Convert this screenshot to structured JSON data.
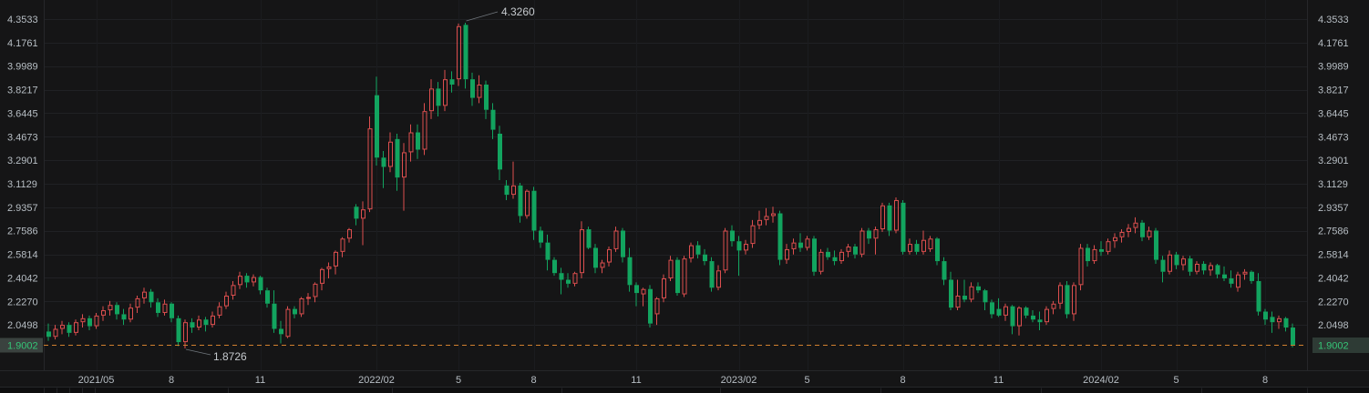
{
  "chart_data": {
    "type": "candlestick",
    "title": "",
    "interval_hint": "weekly K-line, red=up hollow, green=down filled",
    "colors": {
      "background": "#151516",
      "bottom_strip_bg": "#0e0e0f",
      "grid_h": "#202124",
      "grid_v": "#1b1c1f",
      "border": "#26272a",
      "axis_text": "#b7bec4",
      "up": "#dd4f4f",
      "down": "#12a45f",
      "current_price_line": "#d07f2e",
      "current_price_text": "#35c577",
      "left_tag_bg": "#3a423f",
      "right_tag_bg": "#2e3b35",
      "annotation_text": "#c5c9cd",
      "annotation_line": "#70767c"
    },
    "y_axis": {
      "ticks": [
        "4.3533",
        "4.1761",
        "3.9989",
        "3.8217",
        "3.6445",
        "3.4673",
        "3.2901",
        "3.1129",
        "2.9357",
        "2.7586",
        "2.5814",
        "2.4042",
        "2.2270",
        "2.0498"
      ],
      "range_hint": [
        1.755,
        4.5
      ]
    },
    "x_axis": {
      "labels": [
        {
          "text": "2021/05",
          "i": 7
        },
        {
          "text": "8",
          "i": 18
        },
        {
          "text": "11",
          "i": 31
        },
        {
          "text": "2022/02",
          "i": 48
        },
        {
          "text": "5",
          "i": 60
        },
        {
          "text": "8",
          "i": 71
        },
        {
          "text": "11",
          "i": 86
        },
        {
          "text": "2023/02",
          "i": 101
        },
        {
          "text": "5",
          "i": 111
        },
        {
          "text": "8",
          "i": 125
        },
        {
          "text": "11",
          "i": 139
        },
        {
          "text": "2024/02",
          "i": 154
        },
        {
          "text": "5",
          "i": 165
        },
        {
          "text": "8",
          "i": 178
        }
      ]
    },
    "current_price": {
      "label": "1.9002",
      "value": 1.9002
    },
    "annotations": {
      "high": {
        "label": "4.3260",
        "value": 4.326,
        "candle_index": 61
      },
      "low": {
        "label": "1.8726",
        "value": 1.8726,
        "candle_index": 20
      }
    },
    "candles": [
      [
        2.0,
        2.06,
        1.93,
        1.96
      ],
      [
        1.96,
        2.05,
        1.94,
        2.02
      ],
      [
        2.02,
        2.08,
        1.98,
        2.05
      ],
      [
        2.05,
        2.07,
        1.96,
        1.99
      ],
      [
        1.99,
        2.09,
        1.97,
        2.07
      ],
      [
        2.07,
        2.13,
        2.03,
        2.1
      ],
      [
        2.1,
        2.12,
        2.01,
        2.04
      ],
      [
        2.04,
        2.14,
        2.02,
        2.12
      ],
      [
        2.12,
        2.19,
        2.08,
        2.16
      ],
      [
        2.16,
        2.23,
        2.12,
        2.2
      ],
      [
        2.2,
        2.22,
        2.09,
        2.13
      ],
      [
        2.13,
        2.17,
        2.05,
        2.09
      ],
      [
        2.09,
        2.21,
        2.07,
        2.18
      ],
      [
        2.18,
        2.27,
        2.14,
        2.25
      ],
      [
        2.25,
        2.33,
        2.21,
        2.3
      ],
      [
        2.3,
        2.32,
        2.18,
        2.22
      ],
      [
        2.22,
        2.25,
        2.11,
        2.14
      ],
      [
        2.14,
        2.24,
        2.12,
        2.21
      ],
      [
        2.21,
        2.22,
        2.07,
        2.1
      ],
      [
        2.1,
        2.12,
        1.89,
        1.92
      ],
      [
        1.92,
        2.09,
        1.8726,
        2.07
      ],
      [
        2.07,
        2.1,
        1.99,
        2.03
      ],
      [
        2.03,
        2.12,
        2.01,
        2.09
      ],
      [
        2.09,
        2.11,
        2.0,
        2.05
      ],
      [
        2.05,
        2.15,
        2.03,
        2.12
      ],
      [
        2.12,
        2.22,
        2.1,
        2.19
      ],
      [
        2.19,
        2.3,
        2.17,
        2.27
      ],
      [
        2.27,
        2.38,
        2.24,
        2.35
      ],
      [
        2.35,
        2.45,
        2.32,
        2.42
      ],
      [
        2.42,
        2.44,
        2.33,
        2.37
      ],
      [
        2.37,
        2.43,
        2.34,
        2.41
      ],
      [
        2.41,
        2.42,
        2.28,
        2.31
      ],
      [
        2.31,
        2.33,
        2.18,
        2.21
      ],
      [
        2.21,
        2.31,
        1.99,
        2.02
      ],
      [
        2.02,
        2.08,
        1.91,
        1.98
      ],
      [
        1.96,
        2.19,
        1.95,
        2.17
      ],
      [
        2.17,
        2.19,
        2.1,
        2.13
      ],
      [
        2.13,
        2.26,
        2.11,
        2.25
      ],
      [
        2.25,
        2.29,
        2.2,
        2.26
      ],
      [
        2.26,
        2.37,
        2.22,
        2.36
      ],
      [
        2.36,
        2.48,
        2.31,
        2.47
      ],
      [
        2.47,
        2.52,
        2.4,
        2.49
      ],
      [
        2.49,
        2.61,
        2.43,
        2.6
      ],
      [
        2.6,
        2.71,
        2.56,
        2.7
      ],
      [
        2.7,
        2.78,
        2.67,
        2.77
      ],
      [
        2.94,
        2.96,
        2.8,
        2.85
      ],
      [
        2.85,
        2.98,
        2.65,
        2.92
      ],
      [
        2.92,
        3.62,
        2.9,
        3.53
      ],
      [
        3.78,
        3.92,
        3.25,
        3.31
      ],
      [
        3.31,
        3.36,
        3.08,
        3.24
      ],
      [
        3.24,
        3.5,
        3.2,
        3.43
      ],
      [
        3.45,
        3.49,
        3.06,
        3.16
      ],
      [
        3.16,
        3.42,
        2.91,
        3.35
      ],
      [
        3.35,
        3.56,
        3.28,
        3.5
      ],
      [
        3.5,
        3.56,
        3.3,
        3.37
      ],
      [
        3.37,
        3.72,
        3.33,
        3.66
      ],
      [
        3.66,
        3.9,
        3.6,
        3.83
      ],
      [
        3.83,
        3.88,
        3.62,
        3.7
      ],
      [
        3.7,
        3.97,
        3.66,
        3.9
      ],
      [
        3.9,
        3.96,
        3.8,
        3.86
      ],
      [
        3.9,
        4.32,
        3.85,
        4.3
      ],
      [
        4.31,
        4.326,
        3.83,
        3.9
      ],
      [
        3.9,
        3.95,
        3.7,
        3.76
      ],
      [
        3.76,
        3.93,
        3.72,
        3.86
      ],
      [
        3.86,
        3.89,
        3.6,
        3.67
      ],
      [
        3.67,
        3.72,
        3.45,
        3.52
      ],
      [
        3.49,
        3.55,
        3.14,
        3.22
      ],
      [
        3.1,
        3.14,
        2.99,
        3.03
      ],
      [
        3.03,
        3.28,
        3.0,
        3.1
      ],
      [
        3.1,
        3.12,
        2.82,
        2.87
      ],
      [
        2.87,
        3.07,
        2.85,
        3.06
      ],
      [
        3.06,
        3.09,
        2.69,
        2.76
      ],
      [
        2.76,
        2.79,
        2.63,
        2.67
      ],
      [
        2.67,
        2.73,
        2.46,
        2.54
      ],
      [
        2.54,
        2.56,
        2.42,
        2.44
      ],
      [
        2.44,
        2.48,
        2.28,
        2.39
      ],
      [
        2.39,
        2.44,
        2.33,
        2.36
      ],
      [
        2.36,
        2.45,
        2.34,
        2.44
      ],
      [
        2.44,
        2.83,
        2.4,
        2.77
      ],
      [
        2.77,
        2.79,
        2.62,
        2.63
      ],
      [
        2.63,
        2.66,
        2.44,
        2.48
      ],
      [
        2.48,
        2.54,
        2.44,
        2.52
      ],
      [
        2.52,
        2.64,
        2.49,
        2.62
      ],
      [
        2.62,
        2.79,
        2.6,
        2.76
      ],
      [
        2.76,
        2.78,
        2.52,
        2.56
      ],
      [
        2.56,
        2.63,
        2.3,
        2.35
      ],
      [
        2.35,
        2.37,
        2.19,
        2.29
      ],
      [
        2.28,
        2.33,
        2.19,
        2.32
      ],
      [
        2.32,
        2.35,
        2.03,
        2.06
      ],
      [
        2.13,
        2.26,
        2.05,
        2.25
      ],
      [
        2.25,
        2.43,
        2.22,
        2.4
      ],
      [
        2.4,
        2.57,
        2.38,
        2.54
      ],
      [
        2.54,
        2.56,
        2.27,
        2.29
      ],
      [
        2.28,
        2.57,
        2.26,
        2.55
      ],
      [
        2.55,
        2.67,
        2.52,
        2.65
      ],
      [
        2.65,
        2.68,
        2.55,
        2.58
      ],
      [
        2.58,
        2.62,
        2.5,
        2.53
      ],
      [
        2.53,
        2.56,
        2.3,
        2.33
      ],
      [
        2.33,
        2.5,
        2.31,
        2.46
      ],
      [
        2.46,
        2.78,
        2.44,
        2.76
      ],
      [
        2.76,
        2.8,
        2.64,
        2.68
      ],
      [
        2.68,
        2.72,
        2.42,
        2.61
      ],
      [
        2.61,
        2.69,
        2.58,
        2.66
      ],
      [
        2.66,
        2.84,
        2.63,
        2.8
      ],
      [
        2.8,
        2.91,
        2.77,
        2.84
      ],
      [
        2.84,
        2.93,
        2.8,
        2.87
      ],
      [
        2.87,
        2.94,
        2.82,
        2.89
      ],
      [
        2.89,
        2.91,
        2.5,
        2.54
      ],
      [
        2.54,
        2.66,
        2.51,
        2.62
      ],
      [
        2.62,
        2.7,
        2.58,
        2.67
      ],
      [
        2.67,
        2.74,
        2.6,
        2.63
      ],
      [
        2.63,
        2.72,
        2.61,
        2.7
      ],
      [
        2.7,
        2.72,
        2.42,
        2.45
      ],
      [
        2.45,
        2.62,
        2.43,
        2.6
      ],
      [
        2.6,
        2.63,
        2.54,
        2.56
      ],
      [
        2.56,
        2.61,
        2.5,
        2.53
      ],
      [
        2.53,
        2.62,
        2.51,
        2.6
      ],
      [
        2.6,
        2.66,
        2.56,
        2.64
      ],
      [
        2.64,
        2.66,
        2.55,
        2.58
      ],
      [
        2.58,
        2.78,
        2.56,
        2.76
      ],
      [
        2.76,
        2.78,
        2.66,
        2.7
      ],
      [
        2.7,
        2.79,
        2.58,
        2.77
      ],
      [
        2.77,
        2.97,
        2.75,
        2.95
      ],
      [
        2.95,
        2.97,
        2.72,
        2.76
      ],
      [
        2.76,
        3.01,
        2.74,
        2.99
      ],
      [
        2.97,
        2.99,
        2.58,
        2.6
      ],
      [
        2.6,
        2.7,
        2.58,
        2.66
      ],
      [
        2.66,
        2.69,
        2.58,
        2.6
      ],
      [
        2.6,
        2.76,
        2.58,
        2.69
      ],
      [
        2.62,
        2.72,
        2.6,
        2.7
      ],
      [
        2.7,
        2.71,
        2.5,
        2.53
      ],
      [
        2.53,
        2.56,
        2.35,
        2.39
      ],
      [
        2.39,
        2.45,
        2.16,
        2.18
      ],
      [
        2.18,
        2.39,
        2.16,
        2.27
      ],
      [
        2.27,
        2.39,
        2.22,
        2.24
      ],
      [
        2.24,
        2.37,
        2.22,
        2.34
      ],
      [
        2.34,
        2.37,
        2.29,
        2.31
      ],
      [
        2.31,
        2.32,
        2.16,
        2.22
      ],
      [
        2.22,
        2.24,
        2.1,
        2.13
      ],
      [
        2.17,
        2.25,
        2.11,
        2.12
      ],
      [
        2.12,
        2.21,
        2.08,
        2.19
      ],
      [
        2.19,
        2.2,
        1.98,
        2.04
      ],
      [
        2.04,
        2.19,
        1.97,
        2.18
      ],
      [
        2.18,
        2.19,
        2.1,
        2.12
      ],
      [
        2.12,
        2.16,
        2.07,
        2.09
      ],
      [
        2.09,
        2.15,
        2.01,
        2.07
      ],
      [
        2.07,
        2.19,
        2.05,
        2.17
      ],
      [
        2.17,
        2.23,
        2.13,
        2.21
      ],
      [
        2.21,
        2.37,
        2.17,
        2.35
      ],
      [
        2.35,
        2.38,
        2.1,
        2.13
      ],
      [
        2.13,
        2.37,
        2.08,
        2.35
      ],
      [
        2.35,
        2.66,
        2.31,
        2.63
      ],
      [
        2.63,
        2.66,
        2.49,
        2.53
      ],
      [
        2.53,
        2.65,
        2.51,
        2.62
      ],
      [
        2.62,
        2.68,
        2.57,
        2.6
      ],
      [
        2.6,
        2.7,
        2.58,
        2.68
      ],
      [
        2.68,
        2.74,
        2.63,
        2.71
      ],
      [
        2.71,
        2.77,
        2.67,
        2.75
      ],
      [
        2.75,
        2.81,
        2.71,
        2.78
      ],
      [
        2.78,
        2.86,
        2.74,
        2.82
      ],
      [
        2.82,
        2.84,
        2.68,
        2.71
      ],
      [
        2.71,
        2.79,
        2.69,
        2.76
      ],
      [
        2.76,
        2.78,
        2.51,
        2.54
      ],
      [
        2.54,
        2.57,
        2.37,
        2.45
      ],
      [
        2.45,
        2.61,
        2.43,
        2.58
      ],
      [
        2.58,
        2.6,
        2.47,
        2.5
      ],
      [
        2.5,
        2.57,
        2.46,
        2.55
      ],
      [
        2.55,
        2.57,
        2.42,
        2.45
      ],
      [
        2.45,
        2.53,
        2.43,
        2.51
      ],
      [
        2.51,
        2.53,
        2.43,
        2.46
      ],
      [
        2.46,
        2.52,
        2.42,
        2.5
      ],
      [
        2.5,
        2.51,
        2.4,
        2.43
      ],
      [
        2.43,
        2.49,
        2.38,
        2.4
      ],
      [
        2.4,
        2.46,
        2.33,
        2.36
      ],
      [
        2.33,
        2.45,
        2.3,
        2.43
      ],
      [
        2.43,
        2.47,
        2.39,
        2.45
      ],
      [
        2.45,
        2.46,
        2.36,
        2.38
      ],
      [
        2.38,
        2.44,
        2.12,
        2.15
      ],
      [
        2.15,
        2.17,
        2.05,
        2.09
      ],
      [
        2.11,
        2.15,
        1.99,
        2.07
      ],
      [
        2.07,
        2.12,
        2.02,
        2.1
      ],
      [
        2.1,
        2.11,
        2.0,
        2.03
      ],
      [
        2.03,
        2.06,
        1.88,
        1.9002
      ]
    ]
  }
}
